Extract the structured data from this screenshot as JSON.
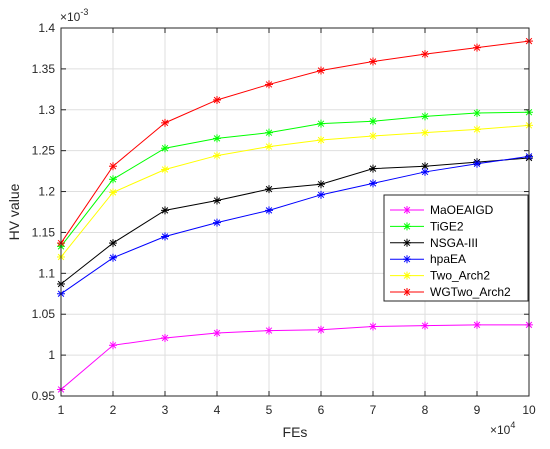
{
  "chart_data": {
    "type": "line",
    "xlabel": "FEs",
    "ylabel": "HV value",
    "x_multiplier": "×10",
    "x_multiplier_exp": "4",
    "y_multiplier": "×10",
    "y_multiplier_exp": "-3",
    "xlim": [
      1,
      10
    ],
    "ylim": [
      0.95,
      1.4
    ],
    "xticks": [
      1,
      2,
      3,
      4,
      5,
      6,
      7,
      8,
      9,
      10
    ],
    "yticks": [
      0.95,
      1,
      1.05,
      1.1,
      1.15,
      1.2,
      1.25,
      1.3,
      1.35,
      1.4
    ],
    "ytick_labels": [
      "0.95",
      "1",
      "1.05",
      "1.1",
      "1.15",
      "1.2",
      "1.25",
      "1.3",
      "1.35",
      "1.4"
    ],
    "grid": true,
    "legend_position": "lower-right",
    "marker": "asterisk",
    "x": [
      1,
      2,
      3,
      4,
      5,
      6,
      7,
      8,
      9,
      10
    ],
    "series": [
      {
        "name": "MaOEAIGD",
        "color": "#ff00ff",
        "values": [
          0.958,
          1.012,
          1.021,
          1.027,
          1.03,
          1.031,
          1.035,
          1.036,
          1.037,
          1.037
        ]
      },
      {
        "name": "TiGE2",
        "color": "#00ff00",
        "values": [
          1.133,
          1.215,
          1.253,
          1.265,
          1.272,
          1.283,
          1.286,
          1.292,
          1.296,
          1.297
        ]
      },
      {
        "name": "NSGA-III",
        "color": "#000000",
        "values": [
          1.087,
          1.137,
          1.177,
          1.189,
          1.203,
          1.209,
          1.228,
          1.231,
          1.236,
          1.241
        ]
      },
      {
        "name": "hpaEA",
        "color": "#0000ff",
        "values": [
          1.075,
          1.119,
          1.145,
          1.162,
          1.177,
          1.196,
          1.21,
          1.224,
          1.234,
          1.243
        ]
      },
      {
        "name": "Two_Arch2",
        "color": "#ffff00",
        "values": [
          1.12,
          1.199,
          1.227,
          1.244,
          1.255,
          1.263,
          1.268,
          1.272,
          1.276,
          1.281
        ]
      },
      {
        "name": "WGTwo_Arch2",
        "color": "#ff0000",
        "values": [
          1.137,
          1.231,
          1.284,
          1.312,
          1.331,
          1.348,
          1.359,
          1.368,
          1.376,
          1.384
        ]
      }
    ]
  }
}
